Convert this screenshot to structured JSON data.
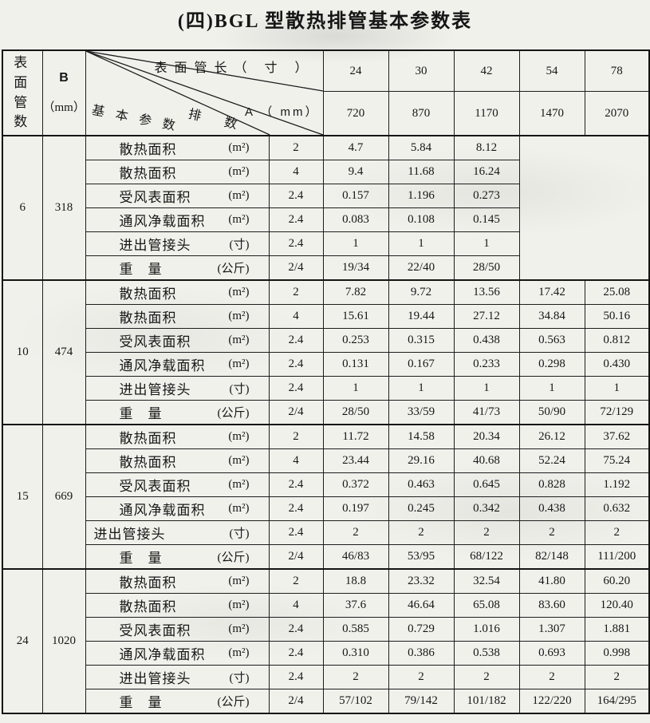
{
  "title": "(四)BGL 型散热排管基本参数表",
  "header": {
    "tube_count_line1": "表 面",
    "tube_count_line2": "管 数",
    "b_label": "B",
    "b_unit": "（mm）",
    "diagonal": {
      "length_label": "表面管长（ 寸 ）",
      "a_label": "A （ mm）",
      "rows_label": "排 数",
      "params_label": "基 本 参 数"
    },
    "lengths": [
      "24",
      "30",
      "42",
      "54",
      "78"
    ],
    "a_values": [
      "720",
      "870",
      "1170",
      "1470",
      "2070"
    ]
  },
  "groups": [
    {
      "tube_count": "6",
      "b": "318",
      "empty_cols": 2,
      "rows": [
        {
          "label": "散热面积",
          "unit": "(m²)",
          "rows_count": "2",
          "values": [
            "4.7",
            "5.84",
            "8.12"
          ]
        },
        {
          "label": "散热面积",
          "unit": "(m²)",
          "rows_count": "4",
          "values": [
            "9.4",
            "11.68",
            "16.24"
          ]
        },
        {
          "label": "受风表面积",
          "unit": "(m²)",
          "rows_count": "2.4",
          "values": [
            "0.157",
            "1.196",
            "0.273"
          ]
        },
        {
          "label": "通风净载面积",
          "unit": "(m²)",
          "rows_count": "2.4",
          "values": [
            "0.083",
            "0.108",
            "0.145"
          ]
        },
        {
          "label": "进出管接头",
          "unit": "(寸)",
          "rows_count": "2.4",
          "values": [
            "1",
            "1",
            "1"
          ]
        },
        {
          "label": "重　量",
          "unit": "(公斤)",
          "rows_count": "2/4",
          "values": [
            "19/34",
            "22/40",
            "28/50"
          ]
        }
      ]
    },
    {
      "tube_count": "10",
      "b": "474",
      "empty_cols": 0,
      "rows": [
        {
          "label": "散热面积",
          "unit": "(m²)",
          "rows_count": "2",
          "values": [
            "7.82",
            "9.72",
            "13.56",
            "17.42",
            "25.08"
          ]
        },
        {
          "label": "散热面积",
          "unit": "(m²)",
          "rows_count": "4",
          "values": [
            "15.61",
            "19.44",
            "27.12",
            "34.84",
            "50.16"
          ]
        },
        {
          "label": "受风表面积",
          "unit": "(m²)",
          "rows_count": "2.4",
          "values": [
            "0.253",
            "0.315",
            "0.438",
            "0.563",
            "0.812"
          ]
        },
        {
          "label": "通风净载面积",
          "unit": "(m²)",
          "rows_count": "2.4",
          "values": [
            "0.131",
            "0.167",
            "0.233",
            "0.298",
            "0.430"
          ]
        },
        {
          "label": "进出管接头",
          "unit": "(寸)",
          "rows_count": "2.4",
          "values": [
            "1",
            "1",
            "1",
            "1",
            "1"
          ]
        },
        {
          "label": "重　量",
          "unit": "(公斤)",
          "rows_count": "2/4",
          "values": [
            "28/50",
            "33/59",
            "41/73",
            "50/90",
            "72/129"
          ]
        }
      ]
    },
    {
      "tube_count": "15",
      "b": "669",
      "empty_cols": 0,
      "rows": [
        {
          "label": "散热面积",
          "unit": "(m²)",
          "rows_count": "2",
          "values": [
            "11.72",
            "14.58",
            "20.34",
            "26.12",
            "37.62"
          ]
        },
        {
          "label": "散热面积",
          "unit": "(m²)",
          "rows_count": "4",
          "values": [
            "23.44",
            "29.16",
            "40.68",
            "52.24",
            "75.24"
          ]
        },
        {
          "label": "受风表面积",
          "unit": "(m²)",
          "rows_count": "2.4",
          "values": [
            "0.372",
            "0.463",
            "0.645",
            "0.828",
            "1.192"
          ]
        },
        {
          "label": "通风净载面积",
          "unit": "(m²)",
          "rows_count": "2.4",
          "values": [
            "0.197",
            "0.245",
            "0.342",
            "0.438",
            "0.632"
          ]
        },
        {
          "label": "进出管接头",
          "unit": "(寸)",
          "rows_count": "2.4",
          "values": [
            "2",
            "2",
            "2",
            "2",
            "2"
          ],
          "wide": true
        },
        {
          "label": "重　量",
          "unit": "(公斤)",
          "rows_count": "2/4",
          "values": [
            "46/83",
            "53/95",
            "68/122",
            "82/148",
            "111/200"
          ]
        }
      ]
    },
    {
      "tube_count": "24",
      "b": "1020",
      "empty_cols": 0,
      "rows": [
        {
          "label": "散热面积",
          "unit": "(m²)",
          "rows_count": "2",
          "values": [
            "18.8",
            "23.32",
            "32.54",
            "41.80",
            "60.20"
          ]
        },
        {
          "label": "散热面积",
          "unit": "(m²)",
          "rows_count": "4",
          "values": [
            "37.6",
            "46.64",
            "65.08",
            "83.60",
            "120.40"
          ]
        },
        {
          "label": "受风表面积",
          "unit": "(m²)",
          "rows_count": "2.4",
          "values": [
            "0.585",
            "0.729",
            "1.016",
            "1.307",
            "1.881"
          ]
        },
        {
          "label": "通风净载面积",
          "unit": "(m²)",
          "rows_count": "2.4",
          "values": [
            "0.310",
            "0.386",
            "0.538",
            "0.693",
            "0.998"
          ]
        },
        {
          "label": "进出管接头",
          "unit": "(寸)",
          "rows_count": "2.4",
          "values": [
            "2",
            "2",
            "2",
            "2",
            "2"
          ]
        },
        {
          "label": "重　量",
          "unit": "(公斤)",
          "rows_count": "2/4",
          "values": [
            "57/102",
            "79/142",
            "101/182",
            "122/220",
            "164/295"
          ]
        }
      ]
    }
  ]
}
